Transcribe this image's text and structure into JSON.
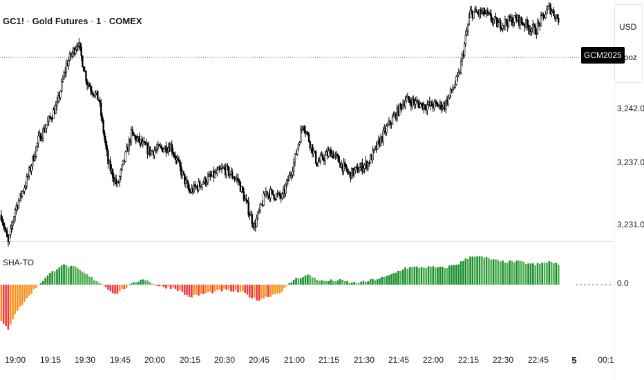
{
  "header": {
    "symbol": "GC1!",
    "name": "Gold Futures",
    "interval": "1",
    "exchange": "COMEX",
    "separator": " · "
  },
  "price_scale": {
    "currency": "USD",
    "mode_label": "apoz",
    "ticks": [
      "3,242.0",
      "3,237.0",
      "3,231.0"
    ],
    "symbol_badge": "GCM2025"
  },
  "indicator": {
    "name": "SHA-TO",
    "zero_label": "0.0"
  },
  "time_axis": {
    "labels": [
      "19:00",
      "19:15",
      "19:30",
      "19:45",
      "20:00",
      "20:15",
      "20:30",
      "20:45",
      "21:00",
      "21:15",
      "21:30",
      "21:45",
      "22:00",
      "22:15",
      "22:30",
      "22:45",
      "5",
      "00:1"
    ]
  },
  "colors": {
    "candle": "#000000",
    "up_green": "#1b8f2e",
    "light_green": "#4caf50",
    "down_red": "#f23645",
    "orange": "#f7931e"
  },
  "chart_data": [
    {
      "type": "candlestick",
      "title": "GC1! · Gold Futures · 1 · COMEX",
      "x_unit": "time",
      "y_ticks": [
        3242.0,
        3237.0,
        3231.0
      ],
      "waypoints": [
        {
          "t": "18:54",
          "p": 3232.5
        },
        {
          "t": "18:57",
          "p": 3230.0
        },
        {
          "t": "19:00",
          "p": 3233.0
        },
        {
          "t": "19:05",
          "p": 3235.5
        },
        {
          "t": "19:10",
          "p": 3239.0
        },
        {
          "t": "19:18",
          "p": 3242.0
        },
        {
          "t": "19:22",
          "p": 3245.5
        },
        {
          "t": "19:27",
          "p": 3247.5
        },
        {
          "t": "19:31",
          "p": 3244.0
        },
        {
          "t": "19:36",
          "p": 3242.5
        },
        {
          "t": "19:40",
          "p": 3237.0
        },
        {
          "t": "19:44",
          "p": 3235.0
        },
        {
          "t": "19:50",
          "p": 3239.5
        },
        {
          "t": "19:58",
          "p": 3238.0
        },
        {
          "t": "20:07",
          "p": 3238.5
        },
        {
          "t": "20:15",
          "p": 3234.5
        },
        {
          "t": "20:22",
          "p": 3235.5
        },
        {
          "t": "20:30",
          "p": 3236.5
        },
        {
          "t": "20:36",
          "p": 3235.5
        },
        {
          "t": "20:43",
          "p": 3231.5
        },
        {
          "t": "20:48",
          "p": 3234.5
        },
        {
          "t": "20:55",
          "p": 3234.0
        },
        {
          "t": "21:00",
          "p": 3237.0
        },
        {
          "t": "21:04",
          "p": 3240.5
        },
        {
          "t": "21:10",
          "p": 3237.0
        },
        {
          "t": "21:16",
          "p": 3238.0
        },
        {
          "t": "21:24",
          "p": 3236.0
        },
        {
          "t": "21:32",
          "p": 3237.0
        },
        {
          "t": "21:40",
          "p": 3240.0
        },
        {
          "t": "21:48",
          "p": 3242.5
        },
        {
          "t": "21:56",
          "p": 3242.0
        },
        {
          "t": "22:05",
          "p": 3242.0
        },
        {
          "t": "22:11",
          "p": 3244.5
        },
        {
          "t": "22:16",
          "p": 3250.0
        },
        {
          "t": "22:22",
          "p": 3250.0
        },
        {
          "t": "22:28",
          "p": 3249.0
        },
        {
          "t": "22:36",
          "p": 3249.5
        },
        {
          "t": "22:44",
          "p": 3248.5
        },
        {
          "t": "22:50",
          "p": 3250.5
        },
        {
          "t": "22:54",
          "p": 3249.5
        }
      ]
    },
    {
      "type": "bar",
      "title": "SHA-TO",
      "x_unit": "time",
      "zero_line": 0.0,
      "waypoints": [
        {
          "t": "18:54",
          "v": -0.85
        },
        {
          "t": "18:57",
          "v": -1.0
        },
        {
          "t": "19:00",
          "v": -0.65
        },
        {
          "t": "19:06",
          "v": -0.25
        },
        {
          "t": "19:10",
          "v": 0.0
        },
        {
          "t": "19:15",
          "v": 0.25
        },
        {
          "t": "19:20",
          "v": 0.45
        },
        {
          "t": "19:26",
          "v": 0.38
        },
        {
          "t": "19:33",
          "v": 0.15
        },
        {
          "t": "19:38",
          "v": 0.0
        },
        {
          "t": "19:43",
          "v": -0.22
        },
        {
          "t": "19:48",
          "v": -0.05
        },
        {
          "t": "19:55",
          "v": 0.14
        },
        {
          "t": "20:02",
          "v": -0.04
        },
        {
          "t": "20:09",
          "v": -0.08
        },
        {
          "t": "20:15",
          "v": -0.28
        },
        {
          "t": "20:22",
          "v": -0.2
        },
        {
          "t": "20:30",
          "v": -0.12
        },
        {
          "t": "20:38",
          "v": -0.18
        },
        {
          "t": "20:44",
          "v": -0.35
        },
        {
          "t": "20:50",
          "v": -0.25
        },
        {
          "t": "20:55",
          "v": -0.15
        },
        {
          "t": "21:00",
          "v": 0.12
        },
        {
          "t": "21:06",
          "v": 0.22
        },
        {
          "t": "21:12",
          "v": 0.08
        },
        {
          "t": "21:20",
          "v": 0.1
        },
        {
          "t": "21:25",
          "v": 0.04
        },
        {
          "t": "21:30",
          "v": 0.06
        },
        {
          "t": "21:40",
          "v": 0.18
        },
        {
          "t": "21:48",
          "v": 0.38
        },
        {
          "t": "21:56",
          "v": 0.4
        },
        {
          "t": "22:05",
          "v": 0.38
        },
        {
          "t": "22:11",
          "v": 0.48
        },
        {
          "t": "22:17",
          "v": 0.66
        },
        {
          "t": "22:23",
          "v": 0.6
        },
        {
          "t": "22:29",
          "v": 0.52
        },
        {
          "t": "22:37",
          "v": 0.52
        },
        {
          "t": "22:44",
          "v": 0.45
        },
        {
          "t": "22:50",
          "v": 0.52
        },
        {
          "t": "22:54",
          "v": 0.45
        }
      ]
    }
  ]
}
